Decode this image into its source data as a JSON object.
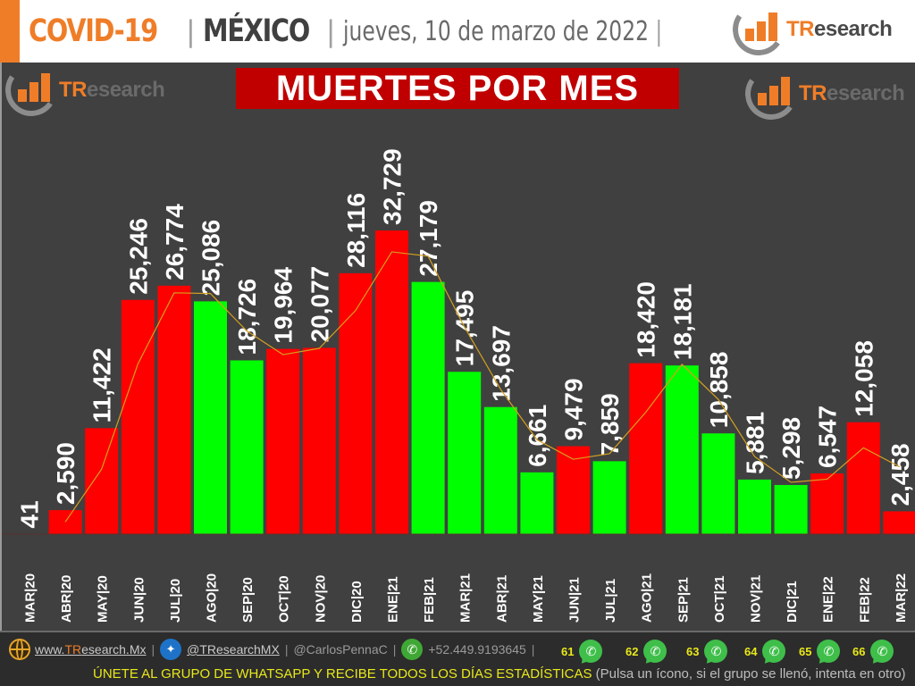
{
  "header": {
    "covid": "COVID-19",
    "sep": "|",
    "country": "MÉXICO",
    "date": "jueves, 10 de marzo de 2022",
    "date_sep": "|",
    "logo_tr": "TR",
    "logo_rest": "esearch"
  },
  "chart": {
    "title": "MUERTES POR MES",
    "watermark_tr": "TR",
    "watermark_rest": "esearch"
  },
  "colors": {
    "increase": "#ff0000",
    "decrease": "#00ff00",
    "trendline": "#d4a020",
    "background": "#404040",
    "title_bg": "#c00000",
    "accent": "#ef7d28"
  },
  "chart_data": {
    "type": "bar",
    "title": "MUERTES POR MES",
    "xlabel": "",
    "ylabel": "",
    "ylim": [
      0,
      35000
    ],
    "grid": false,
    "legend": "none",
    "categories": [
      "MAR|20",
      "ABR|20",
      "MAY|20",
      "JUN|20",
      "JUL|20",
      "AGO|20",
      "SEP|20",
      "OCT|20",
      "NOV|20",
      "DIC|20",
      "ENE|21",
      "FEB|21",
      "MAR|21",
      "ABR|21",
      "MAY|21",
      "JUN|21",
      "JUL|21",
      "AGO|21",
      "SEP|21",
      "OCT|21",
      "NOV|21",
      "DIC|21",
      "ENE|22",
      "FEB|22",
      "MAR|22"
    ],
    "values": [
      41,
      2590,
      11422,
      25246,
      26774,
      25086,
      18726,
      19964,
      20077,
      28116,
      32729,
      27179,
      17495,
      13697,
      6661,
      9479,
      7859,
      18420,
      18181,
      10858,
      5881,
      5298,
      6547,
      12058,
      2458
    ],
    "labels": [
      "41",
      "2,590",
      "11,422",
      "25,246",
      "26,774",
      "25,086",
      "18,726",
      "19,964",
      "20,077",
      "28,116",
      "32,729",
      "27,179",
      "17,495",
      "13,697",
      "6,661",
      "9,479",
      "7,859",
      "18,420",
      "18,181",
      "10,858",
      "5,881",
      "5,298",
      "6,547",
      "12,058",
      "2,458"
    ],
    "bar_colors": [
      "red",
      "red",
      "red",
      "red",
      "red",
      "green",
      "green",
      "red",
      "red",
      "red",
      "red",
      "green",
      "green",
      "green",
      "green",
      "red",
      "green",
      "red",
      "green",
      "green",
      "green",
      "green",
      "red",
      "red",
      "red"
    ],
    "series": [
      {
        "name": "Muertes",
        "type": "bar"
      },
      {
        "name": "Tendencia (media móvil 2 meses)",
        "type": "line"
      }
    ]
  },
  "footer": {
    "website_prefix": "www.",
    "website_tr": "TR",
    "website_rest": "esearch.Mx",
    "twitter": "@TResearchMX",
    "twitter_personal": "@CarlosPennaC",
    "phone": "+52.449.9193645",
    "pipe": "|",
    "whatsapp_groups": [
      "61",
      "62",
      "63",
      "64",
      "65",
      "66"
    ],
    "cta": "ÚNETE AL GRUPO DE WHATSAPP Y RECIBE TODOS LOS DÍAS ESTADÍSTICAS",
    "note": "(Pulsa un ícono, si el grupo se llenó, intenta en otro)"
  }
}
